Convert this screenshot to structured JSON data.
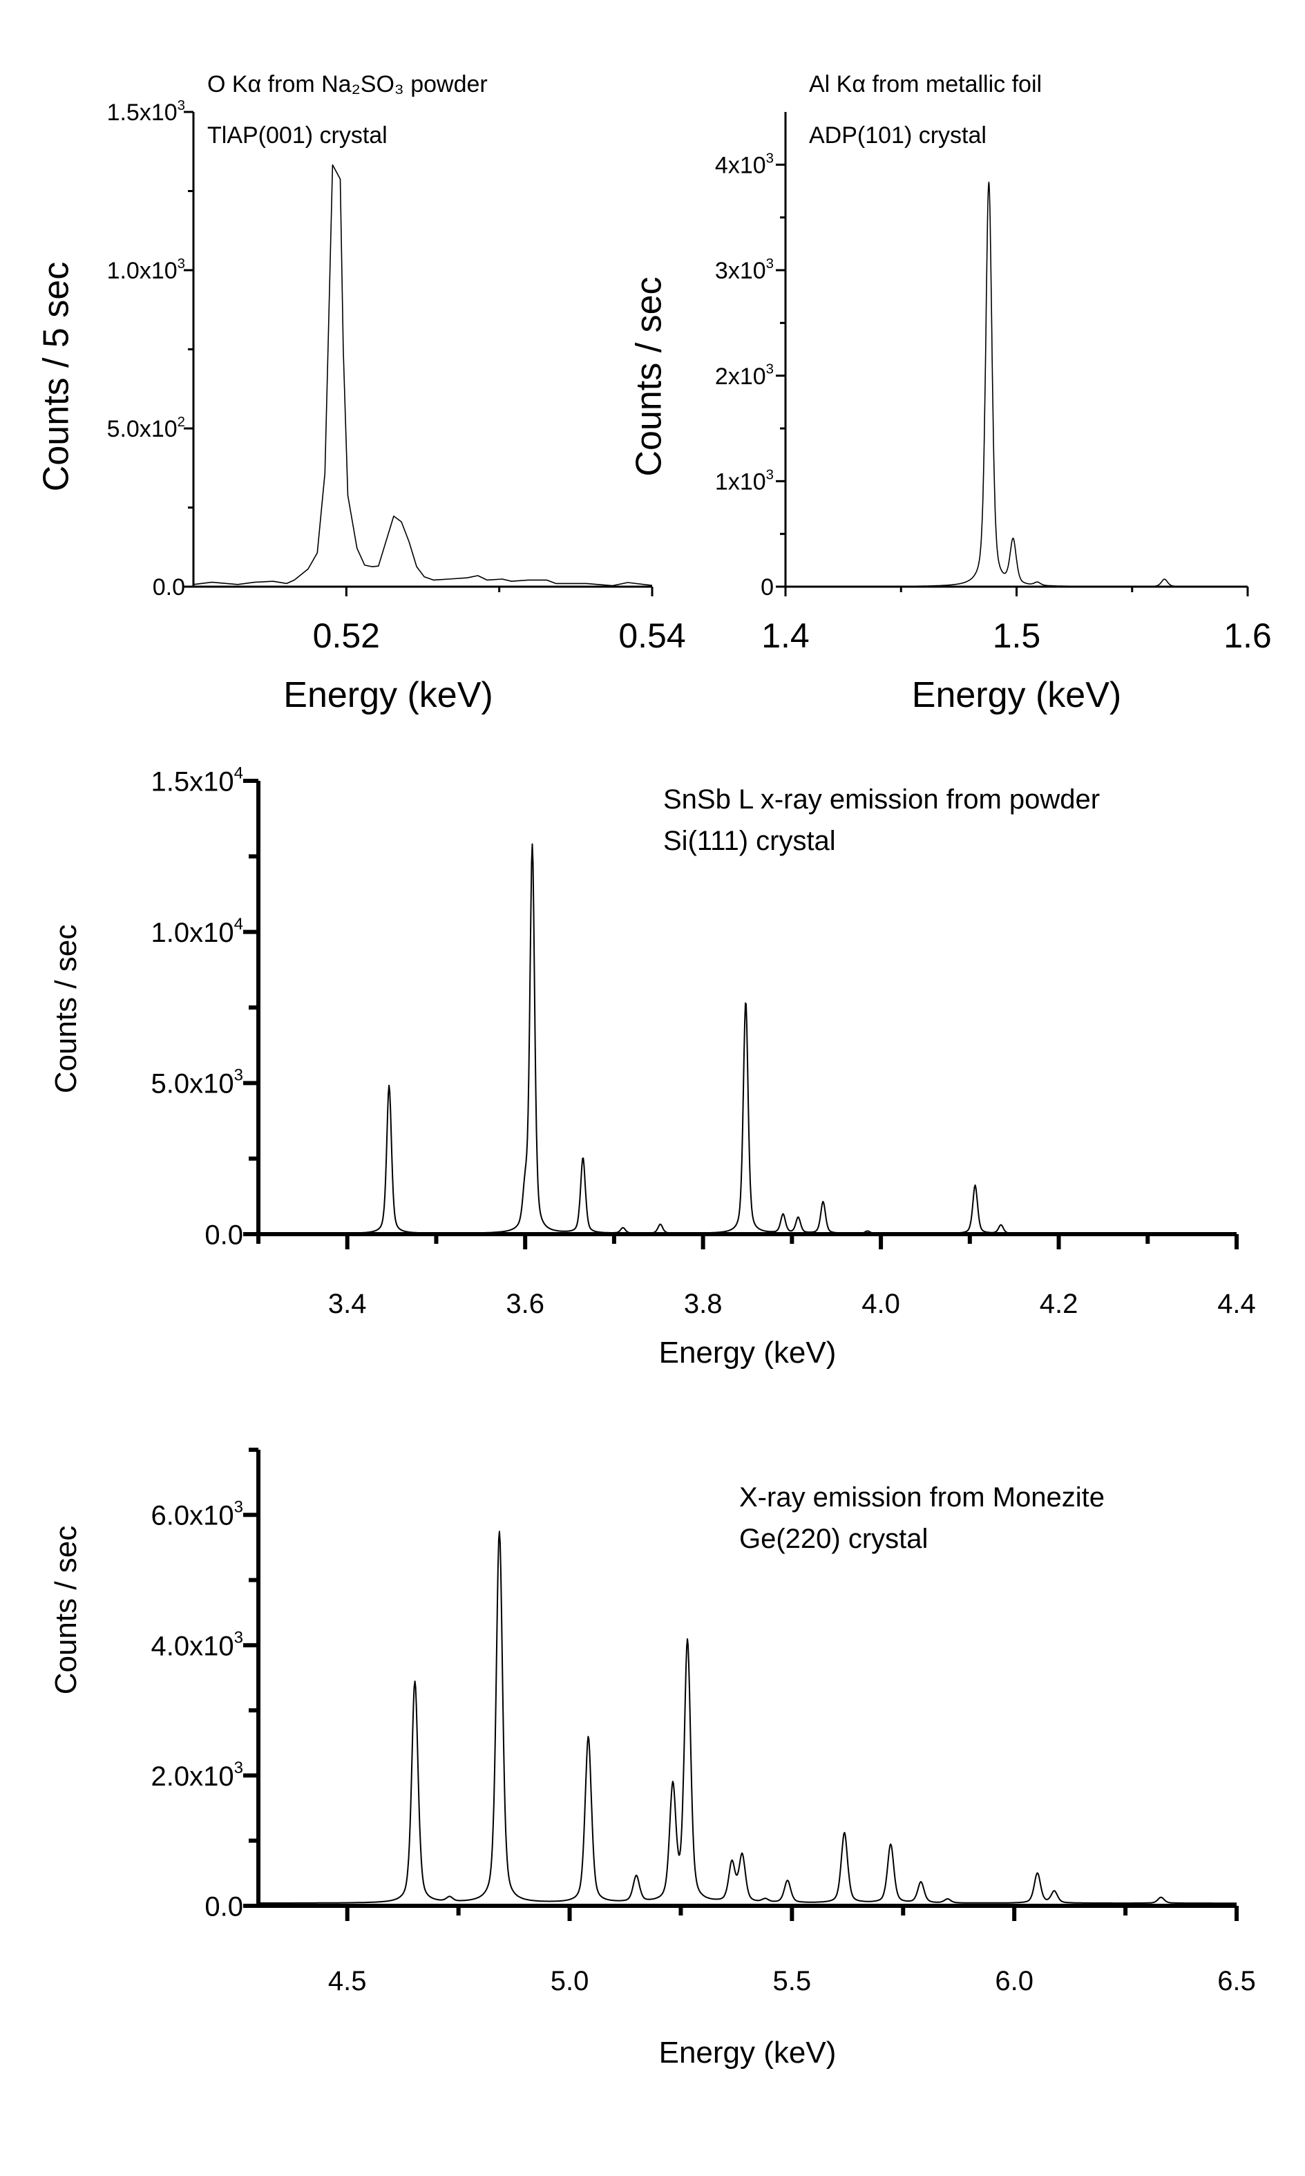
{
  "chart_data": [
    {
      "type": "line",
      "annotation": [
        "O Kα from Na₂SO₃ powder",
        "TlAP(001) crystal"
      ],
      "xlabel": "Energy (keV)",
      "ylabel": "Counts / 5 sec",
      "xlim": [
        0.51,
        0.54
      ],
      "ylim": [
        0,
        1500
      ],
      "grid": false,
      "line_color": "#000000",
      "xticks": {
        "values": [
          0.52,
          0.54
        ],
        "labels": [
          "0.52",
          "0.54"
        ],
        "minor": [
          0.53
        ]
      },
      "yticks": {
        "values": [
          0,
          500,
          1000,
          1500
        ],
        "labels": [
          {
            "base": "0.0"
          },
          {
            "base": "5.0x10",
            "exp": "2"
          },
          {
            "base": "1.0x10",
            "exp": "3"
          },
          {
            "base": "1.5x10",
            "exp": "3"
          }
        ],
        "minor": [
          250,
          750,
          1250
        ]
      },
      "x": [
        0.51,
        0.5112,
        0.5129,
        0.514,
        0.5152,
        0.5161,
        0.5166,
        0.5175,
        0.5181,
        0.5186,
        0.5188,
        0.5191,
        0.5196,
        0.5198,
        0.5201,
        0.5207,
        0.5212,
        0.5217,
        0.5221,
        0.5231,
        0.5236,
        0.5241,
        0.5246,
        0.5251,
        0.5257,
        0.5267,
        0.5279,
        0.5286,
        0.5292,
        0.5302,
        0.5308,
        0.5319,
        0.5331,
        0.5337,
        0.5357,
        0.5374,
        0.5384,
        0.54
      ],
      "y": [
        7,
        14,
        7,
        14,
        17,
        10,
        21,
        56,
        107,
        358,
        748,
        1333,
        1288,
        748,
        288,
        121,
        68,
        63,
        65,
        223,
        205,
        142,
        63,
        31,
        21,
        24,
        28,
        35,
        21,
        24,
        17,
        21,
        21,
        10,
        10,
        3,
        13,
        4
      ]
    },
    {
      "type": "line",
      "annotation": [
        "Al Kα from metallic foil",
        "ADP(101) crystal"
      ],
      "xlabel": "Energy (keV)",
      "ylabel": "Counts / sec",
      "xlim": [
        1.4,
        1.6
      ],
      "ylim": [
        0,
        4500
      ],
      "grid": false,
      "line_color": "#000000",
      "xticks": {
        "values": [
          1.4,
          1.5,
          1.6
        ],
        "labels": [
          "1.4",
          "1.5",
          "1.6"
        ],
        "minor": [
          1.45,
          1.55
        ]
      },
      "yticks": {
        "values": [
          0,
          1000,
          2000,
          3000,
          4000
        ],
        "labels": [
          {
            "base": "0"
          },
          {
            "base": "1x10",
            "exp": "3"
          },
          {
            "base": "2x10",
            "exp": "3"
          },
          {
            "base": "3x10",
            "exp": "3"
          },
          {
            "base": "4x10",
            "exp": "3"
          }
        ],
        "minor": [
          500,
          1500,
          2500,
          3500
        ]
      },
      "peaks": [
        {
          "energy": 1.488,
          "counts": 3830
        },
        {
          "energy": 1.4985,
          "counts": 420
        },
        {
          "energy": 1.509,
          "counts": 30
        },
        {
          "energy": 1.564,
          "counts": 70
        }
      ]
    },
    {
      "type": "line",
      "annotation": [
        "SnSb L x-ray emission from powder",
        "Si(111) crystal"
      ],
      "xlabel": "Energy (keV)",
      "ylabel": "Counts / sec",
      "xlim": [
        3.3,
        4.4
      ],
      "ylim": [
        0,
        15000
      ],
      "grid": false,
      "line_color": "#000000",
      "xticks": {
        "values": [
          3.4,
          3.6,
          3.8,
          4.0,
          4.2,
          4.4
        ],
        "labels": [
          "3.4",
          "3.6",
          "3.8",
          "4.0",
          "4.2",
          "4.4"
        ],
        "minor": [
          3.3,
          3.5,
          3.7,
          3.9,
          4.1,
          4.3
        ]
      },
      "yticks": {
        "values": [
          0,
          5000,
          10000,
          15000
        ],
        "labels": [
          {
            "base": "0.0"
          },
          {
            "base": "5.0x10",
            "exp": "3"
          },
          {
            "base": "1.0x10",
            "exp": "4"
          },
          {
            "base": "1.5x10",
            "exp": "4"
          }
        ],
        "minor": [
          2500,
          7500,
          12500
        ]
      },
      "peaks": [
        {
          "energy": 3.447,
          "counts": 4900
        },
        {
          "energy": 3.6,
          "counts": 1200
        },
        {
          "energy": 3.608,
          "counts": 12800
        },
        {
          "energy": 3.665,
          "counts": 2500
        },
        {
          "energy": 3.71,
          "counts": 180
        },
        {
          "energy": 3.752,
          "counts": 300
        },
        {
          "energy": 3.848,
          "counts": 7700
        },
        {
          "energy": 3.89,
          "counts": 620
        },
        {
          "energy": 3.907,
          "counts": 520
        },
        {
          "energy": 3.935,
          "counts": 1050
        },
        {
          "energy": 3.985,
          "counts": 80
        },
        {
          "energy": 4.106,
          "counts": 1600
        },
        {
          "energy": 4.135,
          "counts": 280
        }
      ]
    },
    {
      "type": "line",
      "annotation": [
        "X-ray emission from Monezite",
        "Ge(220) crystal"
      ],
      "xlabel": "Energy (keV)",
      "ylabel": "Counts / sec",
      "xlim": [
        4.3,
        6.5
      ],
      "ylim": [
        0,
        7000
      ],
      "grid": false,
      "line_color": "#000000",
      "xticks": {
        "values": [
          4.5,
          5.0,
          5.5,
          6.0,
          6.5
        ],
        "labels": [
          "4.5",
          "5.0",
          "5.5",
          "6.0",
          "6.5"
        ],
        "minor": [
          4.75,
          5.25,
          5.75,
          6.25
        ]
      },
      "yticks": {
        "values": [
          0,
          2000,
          4000,
          6000
        ],
        "labels": [
          {
            "base": "0.0"
          },
          {
            "base": "2.0x10",
            "exp": "3"
          },
          {
            "base": "4.0x10",
            "exp": "3"
          },
          {
            "base": "6.0x10",
            "exp": "3"
          }
        ],
        "minor": [
          1000,
          3000,
          5000,
          7000
        ]
      },
      "peaks": [
        {
          "energy": 4.652,
          "counts": 3400
        },
        {
          "energy": 4.73,
          "counts": 70
        },
        {
          "energy": 4.842,
          "counts": 5700
        },
        {
          "energy": 5.042,
          "counts": 2550
        },
        {
          "energy": 5.15,
          "counts": 400
        },
        {
          "energy": 5.232,
          "counts": 1750
        },
        {
          "energy": 5.265,
          "counts": 4000
        },
        {
          "energy": 5.365,
          "counts": 600
        },
        {
          "energy": 5.388,
          "counts": 720
        },
        {
          "energy": 5.44,
          "counts": 50
        },
        {
          "energy": 5.49,
          "counts": 340
        },
        {
          "energy": 5.618,
          "counts": 1080
        },
        {
          "energy": 5.722,
          "counts": 900
        },
        {
          "energy": 5.79,
          "counts": 320
        },
        {
          "energy": 5.85,
          "counts": 60
        },
        {
          "energy": 6.052,
          "counts": 460
        },
        {
          "energy": 6.09,
          "counts": 180
        },
        {
          "energy": 6.33,
          "counts": 90
        }
      ]
    }
  ]
}
